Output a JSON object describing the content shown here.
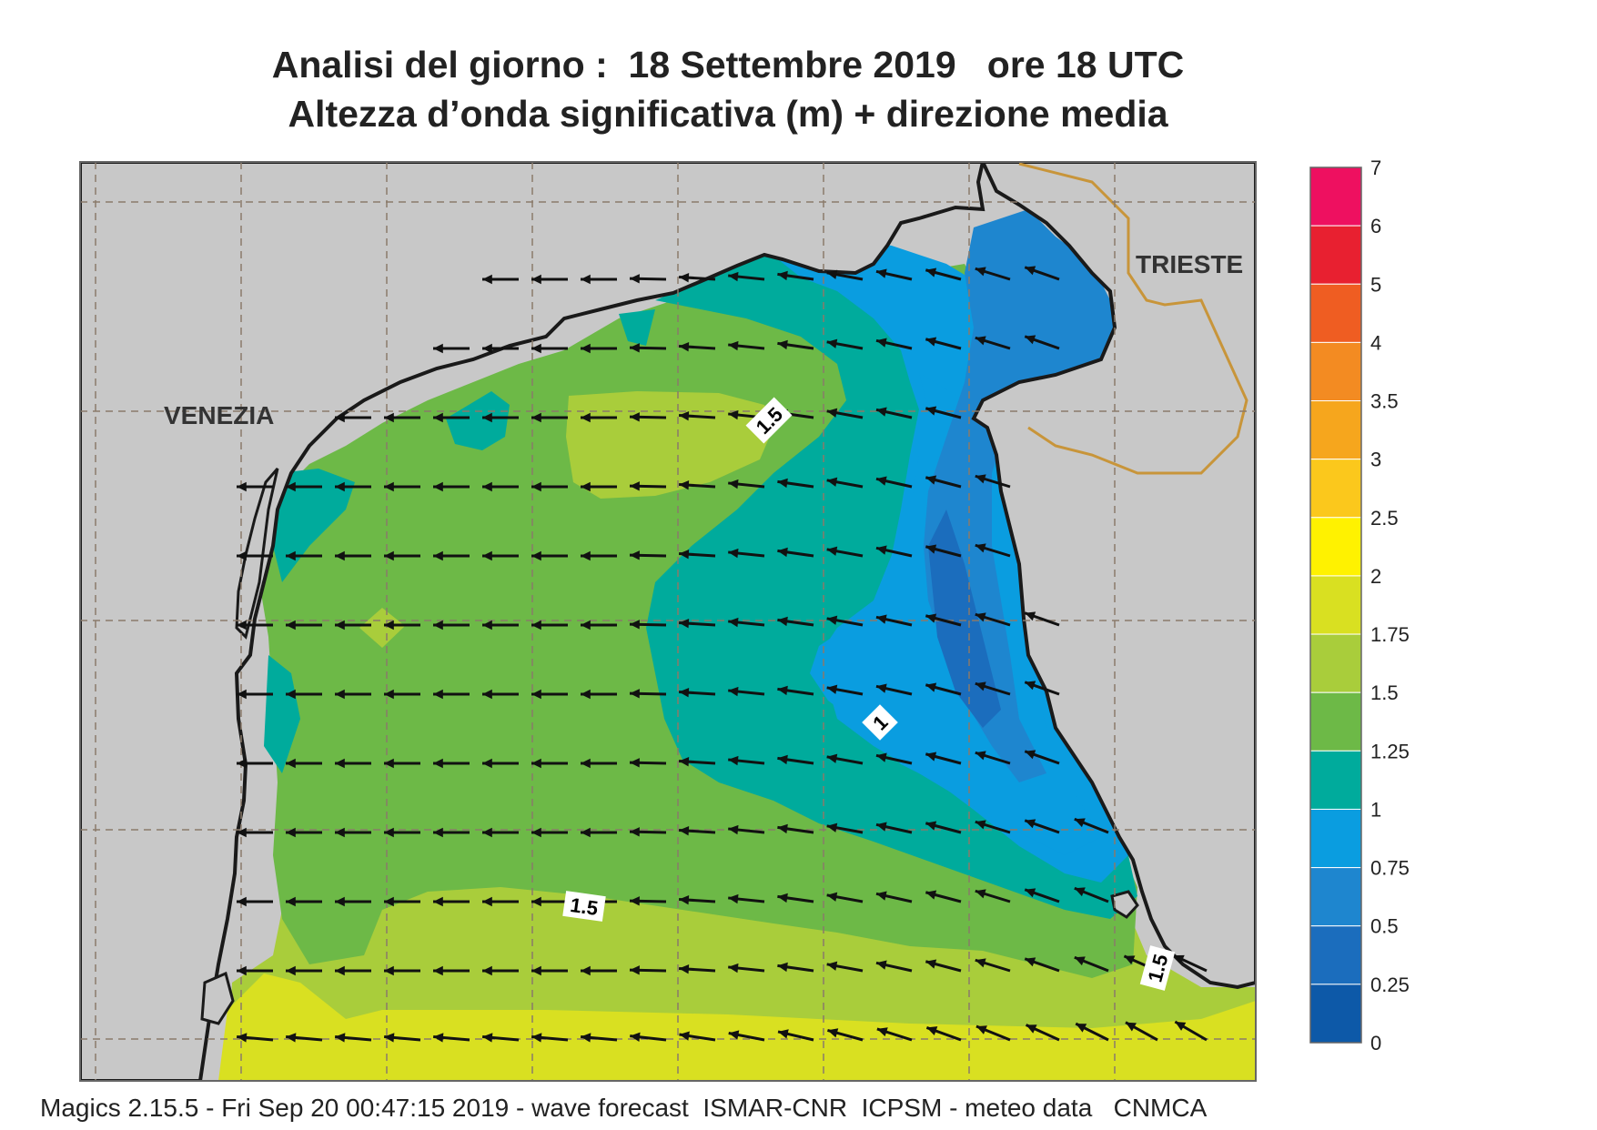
{
  "title_line1": "Analisi del giorno :  18 Settembre 2019   ore 18 UTC",
  "title_line2": "Altezza d’onda significativa (m) + direzione media",
  "cities": [
    "VENEZIA",
    "TRIESTE"
  ],
  "contour_labels": [
    "1.5",
    "1",
    "1.5",
    "1.5"
  ],
  "legend": {
    "levels": [
      "7",
      "6",
      "5",
      "4",
      "3.5",
      "3",
      "2.5",
      "2",
      "1.75",
      "1.5",
      "1.25",
      "1",
      "0.75",
      "0.5",
      "0.25",
      "0"
    ],
    "colors": [
      "#ee1060",
      "#e82030",
      "#ef5d22",
      "#f38b22",
      "#f6a61d",
      "#fbc81c",
      "#fff200",
      "#d9e021",
      "#a9cd3b",
      "#6db947",
      "#00ab9c",
      "#0a9de0",
      "#1e86cf",
      "#1b6dbd",
      "#0d59a8"
    ]
  },
  "palette": {
    "land": "#c8c8c8",
    "frame": "#666666",
    "border": "#c8953a"
  },
  "footer": "Magics 2.15.5 - Fri Sep 20 00:47:15 2019 - wave forecast  ISMAR-CNR  ICPSM - meteo data   CNMCA"
}
